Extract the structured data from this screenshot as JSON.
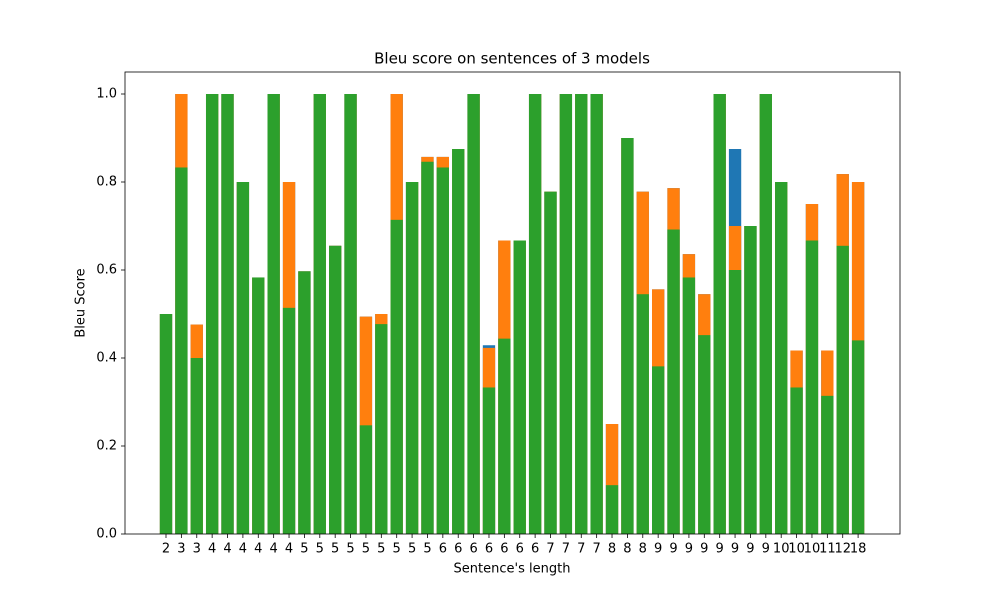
{
  "chart_data": {
    "type": "bar",
    "title": "Bleu score on sentences of 3 models",
    "xlabel": "Sentence's length",
    "ylabel": "Bleu Score",
    "categories": [
      2,
      3,
      3,
      4,
      4,
      4,
      4,
      4,
      4,
      5,
      5,
      5,
      5,
      5,
      5,
      5,
      5,
      5,
      6,
      6,
      6,
      6,
      6,
      6,
      6,
      7,
      7,
      7,
      7,
      8,
      8,
      8,
      9,
      9,
      9,
      9,
      9,
      9,
      9,
      9,
      10,
      10,
      10,
      11,
      12,
      18
    ],
    "series": [
      {
        "color": "#1f77b4",
        "values": [
          0.5,
          1.0,
          0.476,
          1.0,
          1.0,
          0.8,
          0.583,
          1.0,
          0.8,
          0.597,
          1.0,
          0.655,
          1.0,
          0.494,
          0.5,
          1.0,
          0.8,
          0.857,
          0.857,
          0.875,
          1.0,
          0.429,
          0.667,
          0.667,
          1.0,
          0.778,
          1.0,
          1.0,
          1.0,
          0.25,
          0.9,
          0.778,
          0.556,
          0.786,
          0.636,
          0.545,
          1.0,
          0.875,
          0.7,
          1.0,
          0.8,
          0.417,
          0.75,
          0.417,
          0.818,
          0.8
        ]
      },
      {
        "color": "#ff7f0e",
        "values": [
          0.5,
          1.0,
          0.476,
          1.0,
          1.0,
          0.8,
          0.583,
          1.0,
          0.8,
          0.597,
          1.0,
          0.655,
          1.0,
          0.494,
          0.5,
          1.0,
          0.8,
          0.857,
          0.857,
          0.875,
          1.0,
          0.423,
          0.667,
          0.667,
          1.0,
          0.778,
          1.0,
          1.0,
          1.0,
          0.25,
          0.9,
          0.778,
          0.556,
          0.786,
          0.636,
          0.545,
          1.0,
          0.7,
          0.7,
          1.0,
          0.8,
          0.417,
          0.75,
          0.417,
          0.818,
          0.8
        ]
      },
      {
        "color": "#2ca02c",
        "values": [
          0.5,
          0.833,
          0.4,
          1.0,
          1.0,
          0.8,
          0.583,
          1.0,
          0.514,
          0.597,
          1.0,
          0.655,
          1.0,
          0.247,
          0.477,
          0.714,
          0.8,
          0.846,
          0.833,
          0.875,
          1.0,
          0.333,
          0.444,
          0.667,
          1.0,
          0.778,
          1.0,
          1.0,
          1.0,
          0.111,
          0.9,
          0.545,
          0.381,
          0.692,
          0.583,
          0.452,
          1.0,
          0.6,
          0.7,
          1.0,
          0.8,
          0.333,
          0.667,
          0.314,
          0.655,
          0.44
        ]
      }
    ],
    "ylim": [
      0,
      1.05
    ],
    "yticks": [
      {
        "value": 0.0,
        "label": "0.0"
      },
      0.2,
      0.4,
      0.6,
      0.8,
      {
        "value": 1.0,
        "label": "1.0"
      }
    ]
  }
}
